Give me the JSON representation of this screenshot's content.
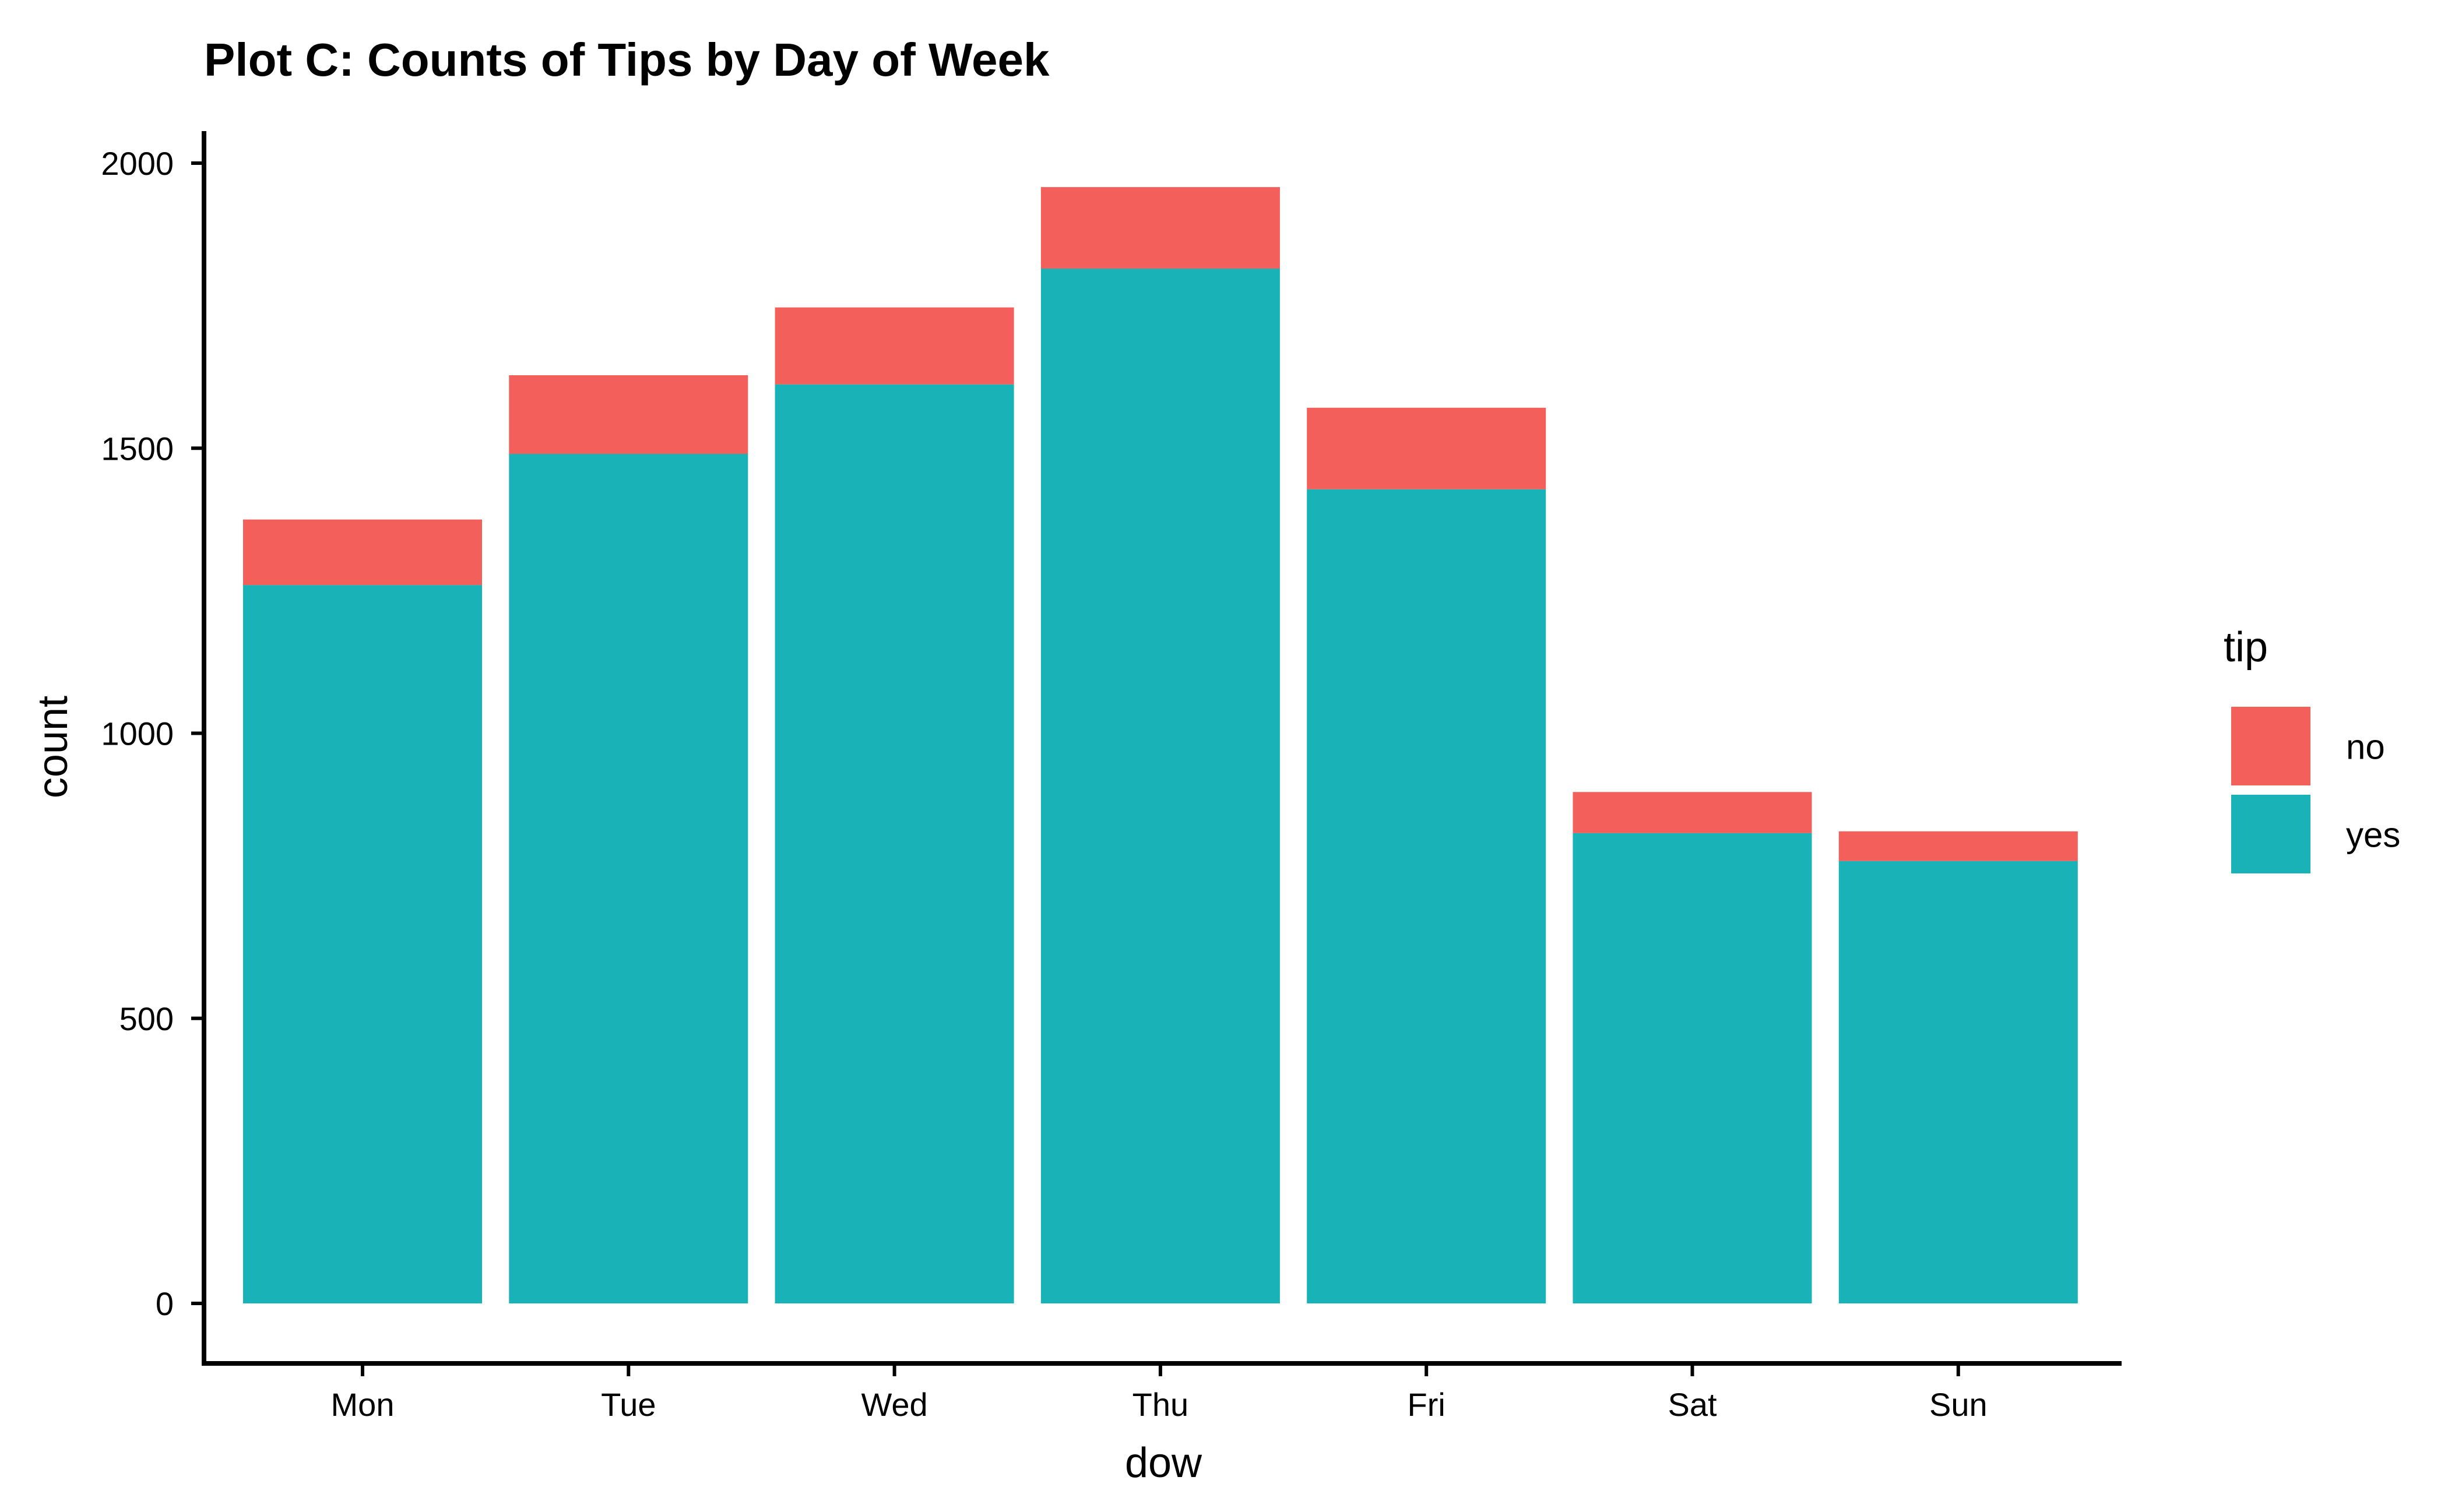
{
  "chart_data": {
    "type": "bar",
    "stacked": true,
    "title": "Plot C: Counts of Tips by Day of Week",
    "xlabel": "dow",
    "ylabel": "count",
    "categories": [
      "Mon",
      "Tue",
      "Wed",
      "Thu",
      "Fri",
      "Sat",
      "Sun"
    ],
    "series": [
      {
        "name": "yes",
        "color": "#19B3B7",
        "values": [
          1260,
          1490,
          1612,
          1815,
          1428,
          825,
          776
        ]
      },
      {
        "name": "no",
        "color": "#F35F5B",
        "values": [
          115,
          138,
          135,
          143,
          143,
          72,
          52
        ]
      }
    ],
    "ylim": [
      0,
      2000
    ],
    "yticks": [
      0,
      500,
      1000,
      1500,
      2000
    ],
    "grid": false,
    "legend": {
      "title": "tip",
      "position": "right",
      "entries": [
        {
          "label": "no",
          "color": "#F35F5B"
        },
        {
          "label": "yes",
          "color": "#19B3B7"
        }
      ]
    }
  }
}
